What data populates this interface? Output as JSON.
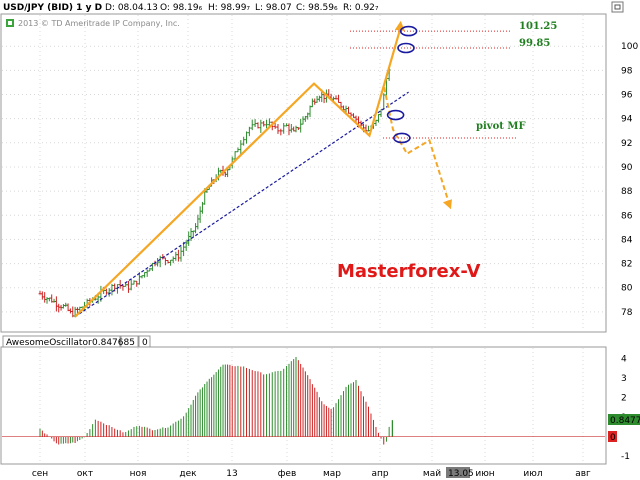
{
  "header": {
    "symbol": "USD/JPY (BID) 1 y D",
    "date": "D: 08.04.13",
    "open": "O: 98.19₆",
    "high": "H: 98.99₇",
    "low": "L: 98.07",
    "close": "C: 98.59₆",
    "range": "R: 0.92₇",
    "copyright": "2013 © TD Ameritrade IP Company, Inc."
  },
  "watermark": "Masterforex-V",
  "oscillator": {
    "name": "AwesomeOscillator",
    "value_text": "0.847685",
    "zero_text": "0",
    "right_tag": "0.8477",
    "right_zero": "0"
  },
  "colors": {
    "up": "#2e8b2e",
    "down": "#cc2222",
    "orange": "#f5a623",
    "trend": "#1a1aa0",
    "pivot": "#e02020",
    "level_text": "#1f7f1f"
  },
  "chart_data": [
    {
      "type": "line",
      "title": "USD/JPY (BID) 1 y D",
      "x_ticks": [
        "сен",
        "окт",
        "ноя",
        "дек",
        "13",
        "фев",
        "мар",
        "апр",
        "май",
        "июн",
        "июл",
        "авг"
      ],
      "x_highlight": "13.05",
      "y_ticks": [
        78,
        80,
        82,
        84,
        86,
        88,
        90,
        92,
        94,
        96,
        98,
        100
      ],
      "ylim": [
        76.5,
        102.5
      ],
      "price_path": [
        [
          0,
          79.5
        ],
        [
          0.12,
          79.2
        ],
        [
          0.25,
          79.0
        ],
        [
          0.4,
          78.6
        ],
        [
          0.55,
          78.4
        ],
        [
          0.7,
          77.8
        ],
        [
          0.85,
          78.2
        ],
        [
          1.0,
          78.6
        ],
        [
          1.2,
          79.2
        ],
        [
          1.4,
          79.8
        ],
        [
          1.6,
          80.3
        ],
        [
          1.8,
          80.0
        ],
        [
          2.0,
          80.6
        ],
        [
          2.2,
          81.6
        ],
        [
          2.4,
          82.4
        ],
        [
          2.6,
          82.3
        ],
        [
          2.8,
          82.6
        ],
        [
          3.0,
          84.0
        ],
        [
          3.2,
          85.2
        ],
        [
          3.35,
          87.5
        ],
        [
          3.5,
          88.5
        ],
        [
          3.7,
          89.5
        ],
        [
          3.85,
          89.6
        ],
        [
          4.0,
          90.5
        ],
        [
          4.15,
          92.0
        ],
        [
          4.3,
          93.2
        ],
        [
          4.5,
          93.5
        ],
        [
          4.65,
          93.7
        ],
        [
          4.8,
          93.0
        ],
        [
          5.0,
          93.4
        ],
        [
          5.15,
          92.8
        ],
        [
          5.3,
          93.6
        ],
        [
          5.45,
          94.4
        ],
        [
          5.55,
          95.3
        ],
        [
          5.7,
          96.0
        ],
        [
          5.85,
          95.8
        ],
        [
          6.0,
          95.7
        ],
        [
          6.15,
          95.2
        ],
        [
          6.3,
          94.8
        ],
        [
          6.45,
          94.3
        ],
        [
          6.6,
          93.4
        ],
        [
          6.75,
          93.0
        ],
        [
          6.9,
          93.6
        ],
        [
          7.0,
          94.5
        ],
        [
          7.08,
          96.0
        ],
        [
          7.14,
          97.8
        ],
        [
          7.2,
          98.6
        ]
      ],
      "levels": [
        {
          "label": "101.25",
          "value": 101.25
        },
        {
          "label": "99.85",
          "value": 99.85
        },
        {
          "label": "pivot MF",
          "value": 92.4
        }
      ]
    },
    {
      "type": "bar",
      "title": "AwesomeOscillator",
      "y_ticks": [
        -1,
        0,
        1,
        2,
        3,
        4
      ],
      "ylim": [
        -1.3,
        4.5
      ],
      "ao_path": [
        [
          0,
          0.4
        ],
        [
          0.4,
          -0.4
        ],
        [
          0.8,
          -0.3
        ],
        [
          1.0,
          0.0
        ],
        [
          1.2,
          0.9
        ],
        [
          1.5,
          0.5
        ],
        [
          1.75,
          0.2
        ],
        [
          2.0,
          0.6
        ],
        [
          2.3,
          0.35
        ],
        [
          2.6,
          0.5
        ],
        [
          2.9,
          1.0
        ],
        [
          3.2,
          2.2
        ],
        [
          3.5,
          3.0
        ],
        [
          3.8,
          3.7
        ],
        [
          4.2,
          3.6
        ],
        [
          4.6,
          3.2
        ],
        [
          4.9,
          3.4
        ],
        [
          5.2,
          4.1
        ],
        [
          5.5,
          3.0
        ],
        [
          5.8,
          1.7
        ],
        [
          6.0,
          1.4
        ],
        [
          6.3,
          2.6
        ],
        [
          6.5,
          2.9
        ],
        [
          6.75,
          1.6
        ],
        [
          6.95,
          0.3
        ],
        [
          7.1,
          -0.6
        ],
        [
          7.2,
          0.85
        ]
      ],
      "last_value": 0.847685
    }
  ]
}
